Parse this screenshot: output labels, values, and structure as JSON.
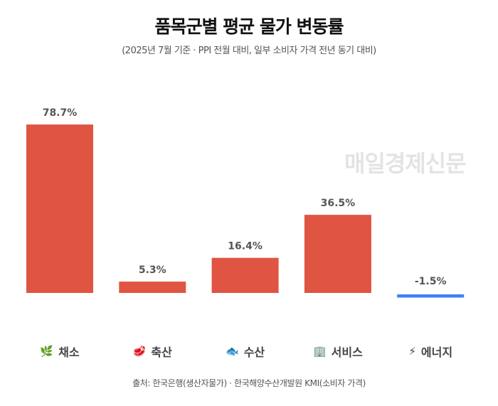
{
  "title": "품목군별 평균 물가 변동률",
  "subtitle": "(2025년 7월 기준 · PPI 전월 대비, 일부 소비자 가격 전년 동기 대비)",
  "watermark": "매일경제신문",
  "source": "출처: 한국은행(생산자물가) · 한국해양수산개발원 KMI(소비자 가격)",
  "colors": {
    "positive": "#e05442",
    "negative": "#3b82f6",
    "label": "#555555"
  },
  "chart_data": {
    "type": "bar",
    "title": "품목군별 평균 물가 변동률",
    "categories": [
      "채소",
      "축산",
      "수산",
      "서비스",
      "에너지"
    ],
    "icons": [
      "leaf-icon",
      "meat-icon",
      "fish-icon",
      "building-icon",
      "lightning-icon"
    ],
    "icon_glyphs": [
      "🌿",
      "🥩",
      "🐟",
      "🏢",
      "⚡"
    ],
    "values": [
      78.7,
      5.3,
      16.4,
      36.5,
      -1.5
    ],
    "data_labels": [
      "78.7%",
      "5.3%",
      "16.4%",
      "36.5%",
      "-1.5%"
    ],
    "xlabel": "",
    "ylabel": "",
    "ylim": [
      -3,
      80
    ],
    "grid": false,
    "legend": "none"
  }
}
